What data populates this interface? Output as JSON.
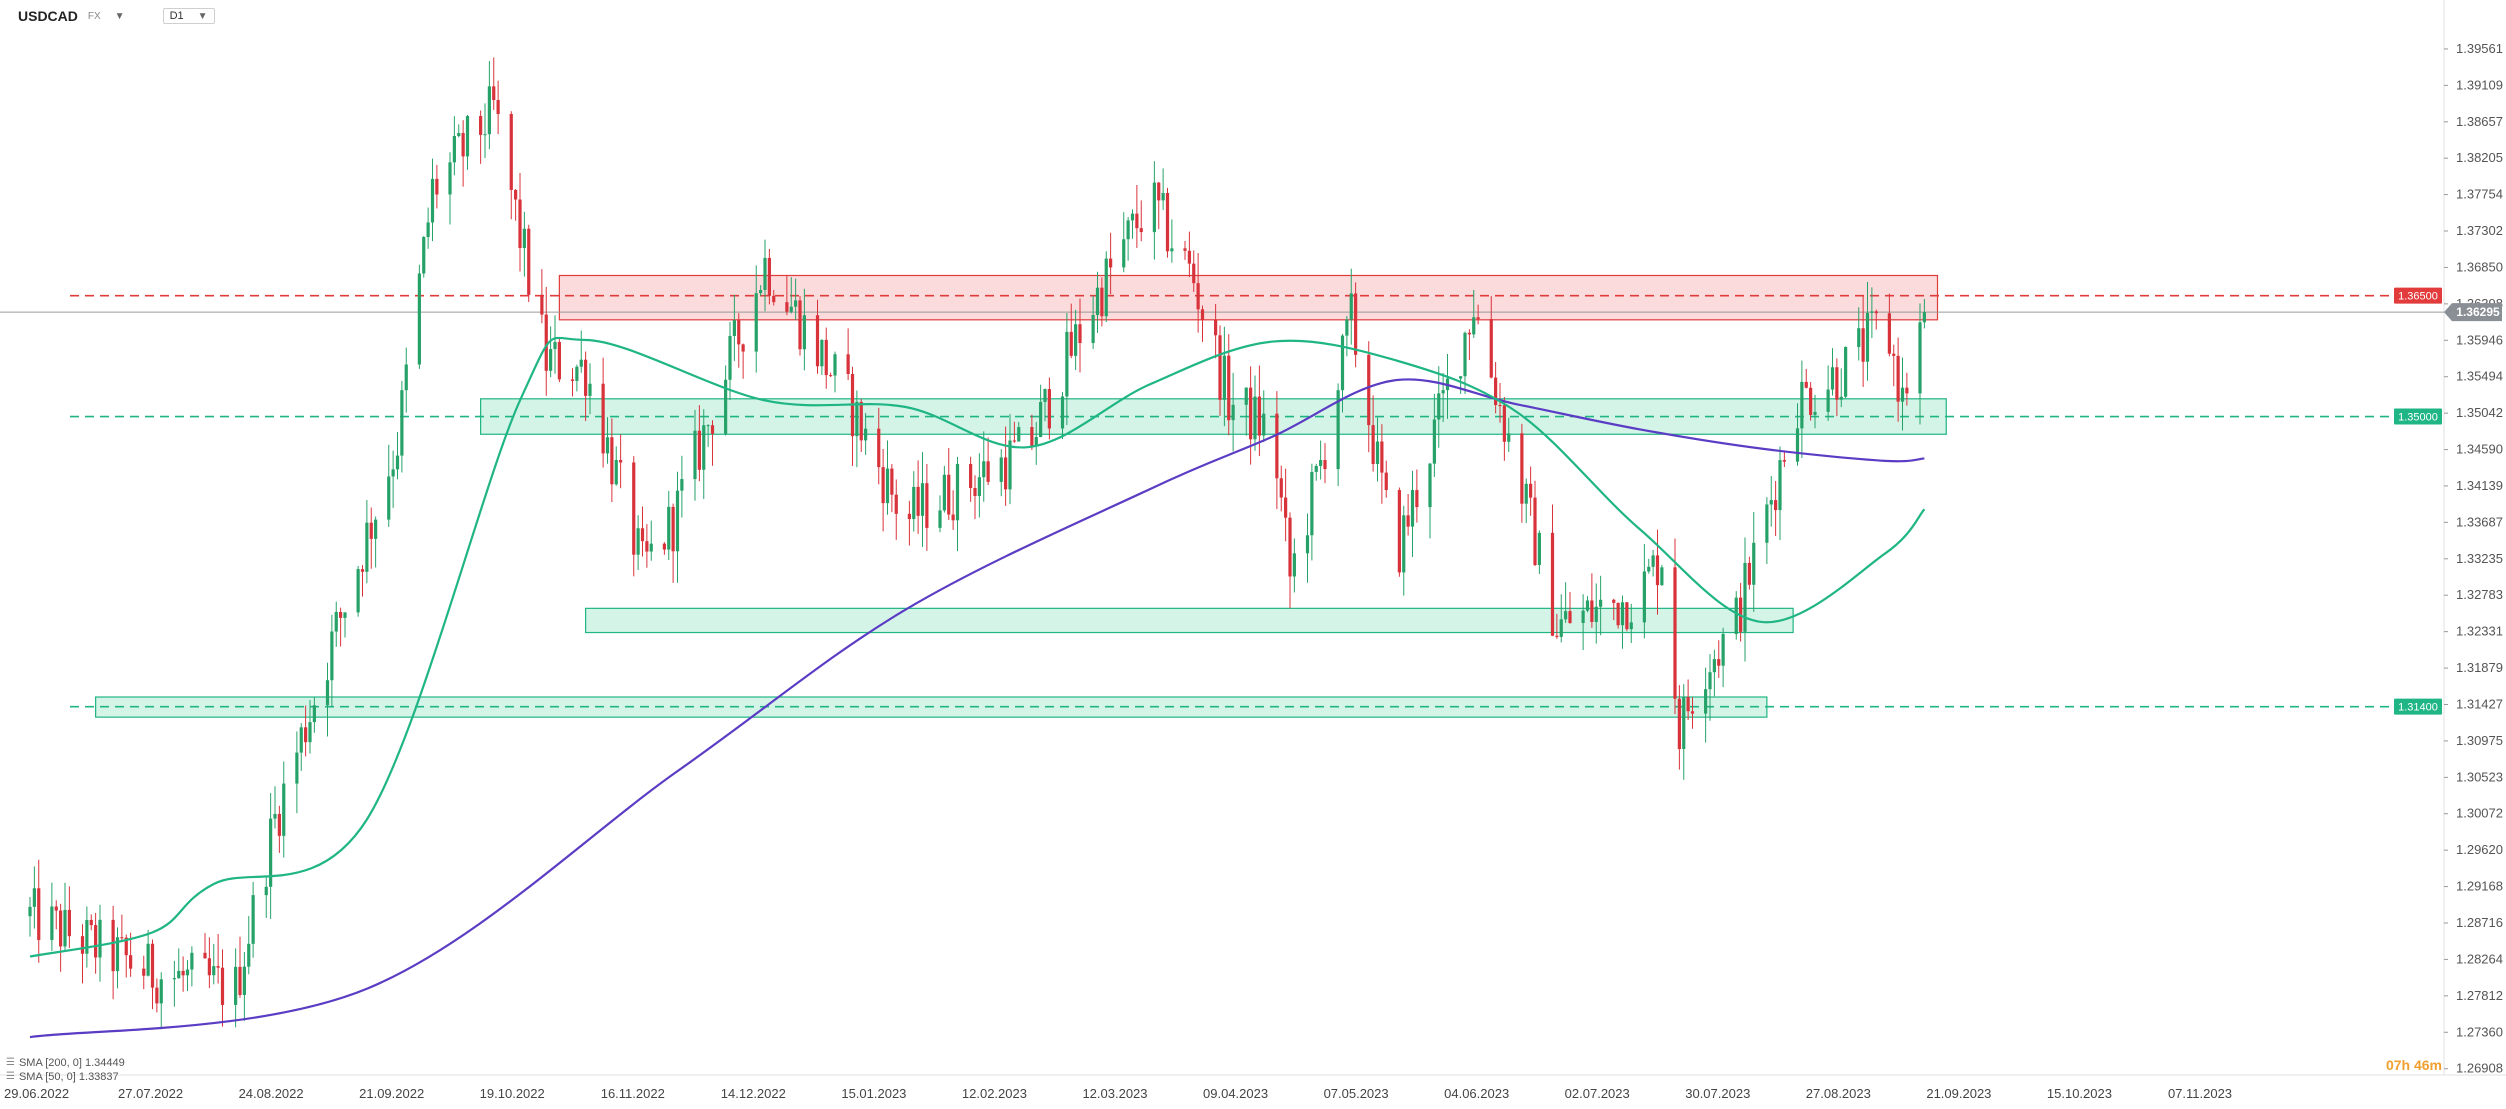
{
  "header": {
    "symbol": "USDCAD",
    "symbol_suffix": "FX",
    "timeframe": "D1"
  },
  "indicators": [
    {
      "label": "SMA [200, 0] 1.34449",
      "color": "#5b3cc4"
    },
    {
      "label": "SMA [50, 0] 1.33837",
      "color": "#1fb584"
    }
  ],
  "countdown": "07h 46m",
  "chart_data": {
    "type": "candlestick",
    "y_ticks": [
      1.39561,
      1.39109,
      1.38657,
      1.38205,
      1.37754,
      1.37302,
      1.3685,
      1.36398,
      1.35946,
      1.35494,
      1.35042,
      1.3459,
      1.34139,
      1.33687,
      1.33235,
      1.32783,
      1.32331,
      1.31879,
      1.31427,
      1.30975,
      1.30523,
      1.30072,
      1.2962,
      1.29168,
      1.28716,
      1.28264,
      1.27812,
      1.2736,
      1.26908
    ],
    "ylim": [
      1.2683,
      1.3992
    ],
    "x_labels": [
      "29.06.2022",
      "27.07.2022",
      "24.08.2022",
      "21.09.2022",
      "19.10.2022",
      "16.11.2022",
      "14.12.2022",
      "15.01.2023",
      "12.02.2023",
      "12.03.2023",
      "09.04.2023",
      "07.05.2023",
      "04.06.2023",
      "02.07.2023",
      "30.07.2023",
      "27.08.2023",
      "21.09.2023",
      "15.10.2023",
      "07.11.2023"
    ],
    "current_price": "1.36295",
    "levels": [
      {
        "value": 1.365,
        "label": "1.36500",
        "color": "#e23b3b"
      },
      {
        "value": 1.35,
        "label": "1.35000",
        "color": "#1fb584"
      },
      {
        "value": 1.314,
        "label": "1.31400",
        "color": "#1fb584"
      }
    ],
    "zones": [
      {
        "from_date": "28.10.2022",
        "to_date": "08.09.2023",
        "low": 1.362,
        "high": 1.3675,
        "color": "red"
      },
      {
        "from_date": "10.10.2022",
        "to_date": "10.09.2023",
        "low": 1.3478,
        "high": 1.3522,
        "color": "green"
      },
      {
        "from_date": "03.11.2022",
        "to_date": "06.08.2023",
        "low": 1.3232,
        "high": 1.3262,
        "color": "green"
      },
      {
        "from_date": "14.07.2022",
        "to_date": "31.07.2023",
        "low": 1.3127,
        "high": 1.3152,
        "color": "green"
      }
    ],
    "series": [
      {
        "name": "SMA 200",
        "color": "#5b3cc4",
        "points": [
          [
            "29.06.2022",
            1.273
          ],
          [
            "14.09.2022",
            1.279
          ],
          [
            "24.11.2022",
            1.306
          ],
          [
            "15.01.2023",
            1.326
          ],
          [
            "12.03.2023",
            1.341
          ],
          [
            "09.04.2023",
            1.3475
          ],
          [
            "07.05.2023",
            1.3545
          ],
          [
            "04.06.2023",
            1.3515
          ],
          [
            "02.07.2023",
            1.3484
          ],
          [
            "30.07.2023",
            1.346
          ],
          [
            "27.08.2023",
            1.3445
          ],
          [
            "05.09.2023",
            1.3448
          ]
        ]
      },
      {
        "name": "SMA 50",
        "color": "#1fb584",
        "points": [
          [
            "29.06.2022",
            1.283
          ],
          [
            "27.07.2022",
            1.286
          ],
          [
            "10.08.2022",
            1.292
          ],
          [
            "14.09.2022",
            1.3
          ],
          [
            "19.10.2022",
            1.352
          ],
          [
            "03.11.2022",
            1.3595
          ],
          [
            "14.12.2022",
            1.352
          ],
          [
            "15.01.2023",
            1.3512
          ],
          [
            "12.02.2023",
            1.3462
          ],
          [
            "12.03.2023",
            1.354
          ],
          [
            "09.04.2023",
            1.3593
          ],
          [
            "07.05.2023",
            1.357
          ],
          [
            "04.06.2023",
            1.3505
          ],
          [
            "02.07.2023",
            1.336
          ],
          [
            "30.07.2023",
            1.3245
          ],
          [
            "27.08.2023",
            1.333
          ],
          [
            "05.09.2023",
            1.3385
          ]
        ]
      }
    ],
    "candle_anchors": [
      [
        "29.06.2022",
        1.288
      ],
      [
        "27.07.2022",
        1.281
      ],
      [
        "15.08.2022",
        1.279
      ],
      [
        "24.08.2022",
        1.3
      ],
      [
        "21.09.2022",
        1.347
      ],
      [
        "29.09.2022",
        1.378
      ],
      [
        "13.10.2022",
        1.388
      ],
      [
        "25.10.2022",
        1.357
      ],
      [
        "03.11.2022",
        1.356
      ],
      [
        "16.11.2022",
        1.331
      ],
      [
        "23.11.2022",
        1.337
      ],
      [
        "14.12.2022",
        1.369
      ],
      [
        "22.12.2022",
        1.362
      ],
      [
        "02.01.2023",
        1.352
      ],
      [
        "15.01.2023",
        1.337
      ],
      [
        "20.01.2023",
        1.339
      ],
      [
        "12.02.2023",
        1.346
      ],
      [
        "26.02.2023",
        1.363
      ],
      [
        "12.03.2023",
        1.377
      ],
      [
        "22.03.2023",
        1.367
      ],
      [
        "30.03.2023",
        1.352
      ],
      [
        "09.04.2023",
        1.348
      ],
      [
        "13.04.2023",
        1.33
      ],
      [
        "20.04.2023",
        1.344
      ],
      [
        "27.04.2023",
        1.362
      ],
      [
        "07.05.2023",
        1.332
      ],
      [
        "16.05.2023",
        1.348
      ],
      [
        "25.05.2023",
        1.364
      ],
      [
        "04.06.2023",
        1.343
      ],
      [
        "13.06.2023",
        1.324
      ],
      [
        "02.07.2023",
        1.328
      ],
      [
        "07.07.2023",
        1.333
      ],
      [
        "11.07.2023",
        1.311
      ],
      [
        "16.07.2023",
        1.319
      ],
      [
        "23.07.2023",
        1.323
      ],
      [
        "30.07.2023",
        1.336
      ],
      [
        "07.08.2023",
        1.352
      ],
      [
        "18.08.2023",
        1.356
      ],
      [
        "27.08.2023",
        1.362
      ],
      [
        "31.08.2023",
        1.352
      ],
      [
        "05.09.2023",
        1.363
      ]
    ]
  }
}
